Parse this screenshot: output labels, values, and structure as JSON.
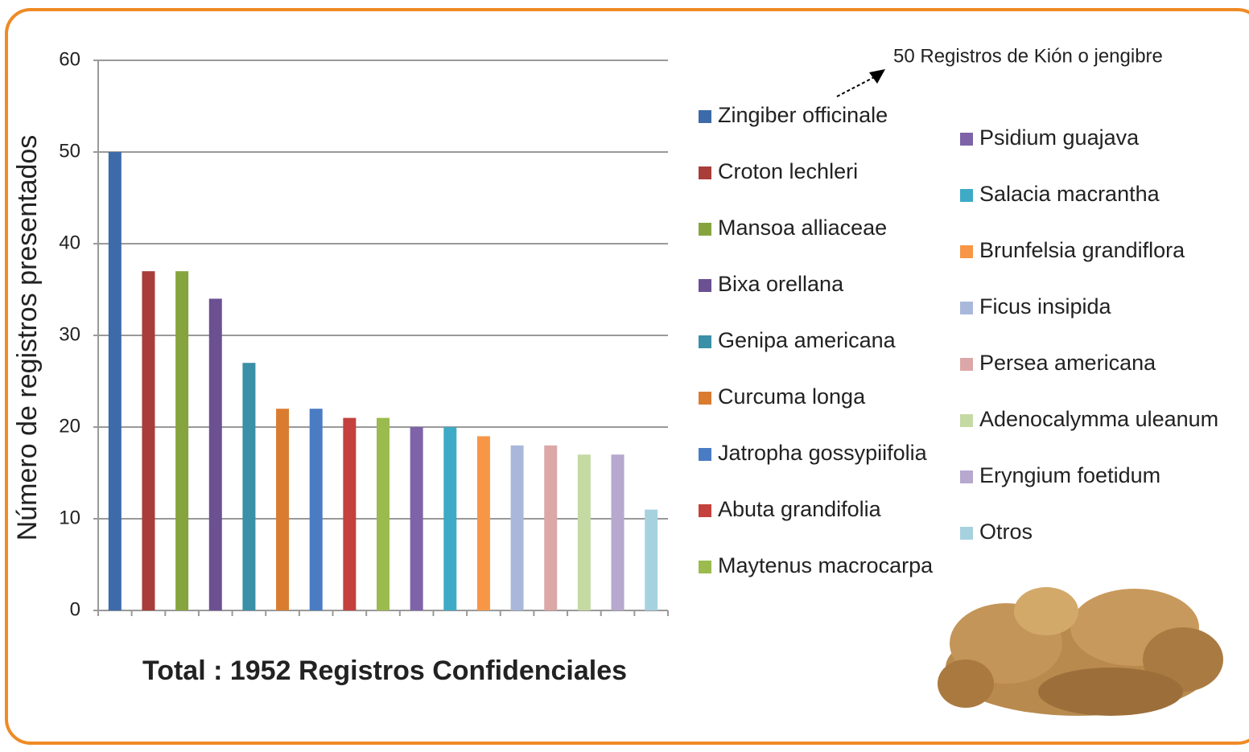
{
  "chart_data": {
    "type": "bar",
    "y_label": "Número de registros presentados",
    "x_label": "Total : 1952 Registros Confidenciales",
    "annotation": "50 Registros de Kión o jengibre",
    "categories": [
      "Zingiber officinale",
      "Croton lechleri",
      "Mansoa alliaceae",
      "Bixa orellana",
      "Genipa americana",
      "Curcuma longa",
      "Jatropha gossypiifolia",
      "Abuta grandifolia",
      "Maytenus macrocarpa",
      "Psidium guajava",
      "Salacia macrantha",
      "Brunfelsia grandiflora",
      "Ficus insipida",
      "Persea americana",
      "Adenocalymma uleanum",
      "Eryngium foetidum",
      "Otros"
    ],
    "values": [
      50,
      37,
      37,
      34,
      27,
      22,
      22,
      21,
      21,
      20,
      20,
      19,
      18,
      18,
      17,
      17,
      11
    ],
    "colors": [
      "#3d6aa8",
      "#a83d3a",
      "#86a43e",
      "#6b5092",
      "#3a90a6",
      "#d97c30",
      "#4a7cc4",
      "#c4413d",
      "#9bbb4e",
      "#7e63a8",
      "#3eaac6",
      "#f79646",
      "#a9b8da",
      "#dba8a7",
      "#c5d9a3",
      "#b6a8cf",
      "#a6d2e0"
    ],
    "ylim": [
      0,
      60
    ],
    "yticks": [
      0,
      10,
      20,
      30,
      40,
      50,
      60
    ],
    "grid": true
  }
}
